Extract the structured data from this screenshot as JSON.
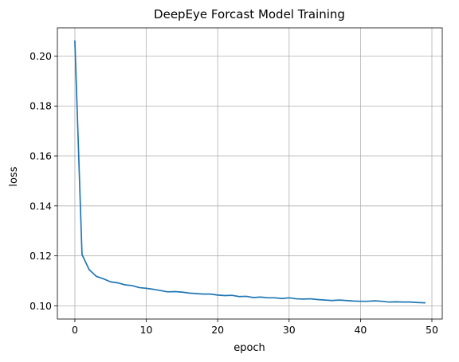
{
  "chart_data": {
    "type": "line",
    "title": "DeepEye Forcast Model Training",
    "xlabel": "epoch",
    "ylabel": "loss",
    "xlim": [
      -2.45,
      51.45
    ],
    "ylim": [
      0.0947,
      0.2113
    ],
    "xticks": [
      0,
      10,
      20,
      30,
      40,
      50
    ],
    "xtick_labels": [
      "0",
      "10",
      "20",
      "30",
      "40",
      "50"
    ],
    "yticks": [
      0.1,
      0.12,
      0.14,
      0.16,
      0.18,
      0.2
    ],
    "ytick_labels": [
      "0.10",
      "0.12",
      "0.14",
      "0.16",
      "0.18",
      "0.20"
    ],
    "grid": true,
    "series": [
      {
        "color": "#1f77b4",
        "x": [
          0,
          1,
          2,
          3,
          4,
          5,
          6,
          7,
          8,
          9,
          10,
          11,
          12,
          13,
          14,
          15,
          16,
          17,
          18,
          19,
          20,
          21,
          22,
          23,
          24,
          25,
          26,
          27,
          28,
          29,
          30,
          31,
          32,
          33,
          34,
          35,
          36,
          37,
          38,
          39,
          40,
          41,
          42,
          43,
          44,
          45,
          46,
          47,
          48,
          49
        ],
        "values": [
          0.206,
          0.1205,
          0.1145,
          0.1118,
          0.1108,
          0.1096,
          0.1092,
          0.1084,
          0.1081,
          0.1073,
          0.107,
          0.1066,
          0.1061,
          0.1056,
          0.1057,
          0.1055,
          0.1051,
          0.1049,
          0.1047,
          0.1047,
          0.1043,
          0.1041,
          0.1042,
          0.1037,
          0.1038,
          0.1033,
          0.1035,
          0.1032,
          0.1032,
          0.1029,
          0.1032,
          0.1028,
          0.1027,
          0.1028,
          0.1025,
          0.1023,
          0.1021,
          0.1023,
          0.1021,
          0.1019,
          0.1018,
          0.1018,
          0.102,
          0.1018,
          0.1015,
          0.1016,
          0.1015,
          0.1015,
          0.1013,
          0.1012
        ]
      }
    ]
  }
}
